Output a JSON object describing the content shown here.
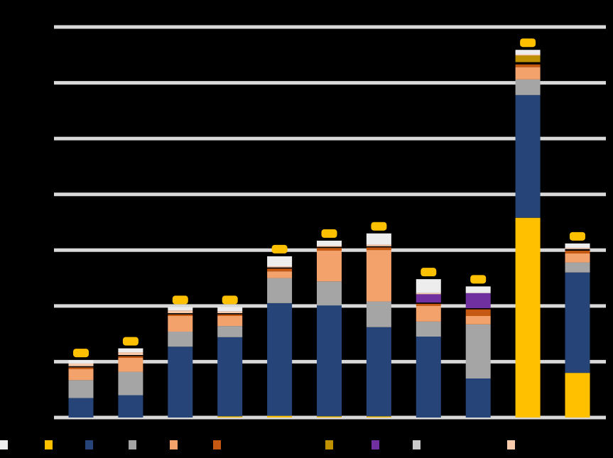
{
  "chart_data": {
    "type": "bar",
    "stacked": true,
    "background": "#000000",
    "grid": true,
    "grid_color": "#d9d9d9",
    "ylim": [
      0,
      7
    ],
    "gridline_values": [
      0,
      1,
      2,
      3,
      4,
      5,
      6,
      7
    ],
    "categories": [
      "",
      "",
      "",
      "",
      "",
      "",
      "",
      "",
      "",
      "",
      ""
    ],
    "total_label_color": "#ffc000",
    "legend_placement": "bottom",
    "series": [
      {
        "color": "#ffc000",
        "values": [
          0,
          0,
          0,
          0.02,
          0.03,
          0.02,
          0.02,
          0,
          0,
          3.58,
          0.8
        ]
      },
      {
        "color": "#264478",
        "values": [
          0.35,
          0.4,
          1.27,
          1.42,
          2.02,
          1.99,
          1.6,
          1.45,
          0.7,
          2.2,
          1.8
        ]
      },
      {
        "color": "#a5a5a5",
        "values": [
          0.32,
          0.42,
          0.27,
          0.2,
          0.45,
          0.43,
          0.46,
          0.27,
          0.97,
          0.28,
          0.18
        ]
      },
      {
        "color": "#f4a26c",
        "values": [
          0.2,
          0.25,
          0.28,
          0.18,
          0.12,
          0.55,
          0.92,
          0.28,
          0.15,
          0.22,
          0.16
        ]
      },
      {
        "color": "#c65911",
        "values": [
          0.03,
          0.03,
          0.03,
          0.03,
          0.05,
          0.05,
          0.05,
          0.04,
          0.12,
          0.05,
          0.05
        ]
      },
      {
        "color": "#000000",
        "values": [
          0.02,
          0.02,
          0.02,
          0.02,
          0.02,
          0.02,
          0.02,
          0.02,
          0.02,
          0.04,
          0.03
        ]
      },
      {
        "color": "#bf9000",
        "values": [
          0,
          0,
          0,
          0,
          0,
          0,
          0,
          0,
          0,
          0.12,
          0
        ]
      },
      {
        "color": "#7030a0",
        "values": [
          0,
          0,
          0,
          0,
          0,
          0,
          0,
          0.15,
          0.27,
          0,
          0
        ]
      },
      {
        "color": "#c9c9c9",
        "values": [
          0,
          0,
          0,
          0,
          0,
          0,
          0,
          0,
          0,
          0,
          0
        ]
      },
      {
        "color": "#f8cbad",
        "values": [
          0.05,
          0.05,
          0.05,
          0.03,
          0.02,
          0.02,
          0.03,
          0.02,
          0,
          0.02,
          0.02
        ]
      },
      {
        "color": "#ededed",
        "values": [
          0.06,
          0.07,
          0.06,
          0.08,
          0.18,
          0.09,
          0.2,
          0.25,
          0.12,
          0.08,
          0.08
        ]
      }
    ]
  }
}
